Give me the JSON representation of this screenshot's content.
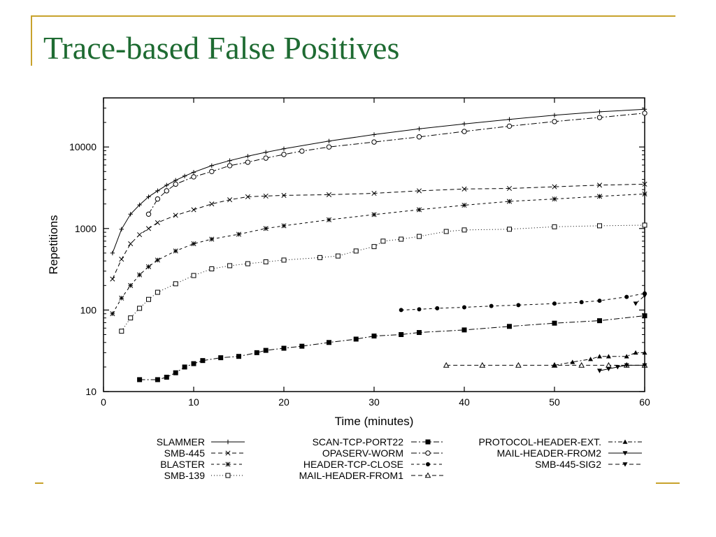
{
  "slide": {
    "title": "Trace-based False Positives",
    "accent_color": "#c8a22c",
    "title_color": "#1e6b32"
  },
  "chart_data": {
    "type": "line",
    "title": "",
    "xlabel": "Time (minutes)",
    "ylabel": "Repetitions",
    "xlim": [
      0,
      60
    ],
    "ylim": [
      10,
      40000
    ],
    "yscale": "log",
    "xticks": [
      "0",
      "10",
      "20",
      "30",
      "40",
      "50",
      "60"
    ],
    "yticks": [
      "10",
      "100",
      "1000",
      "10000"
    ],
    "legend_position": "bottom",
    "series": [
      {
        "name": "SLAMMER",
        "marker": "plus",
        "dash": "",
        "points": [
          [
            1,
            500
          ],
          [
            2,
            980
          ],
          [
            3,
            1500
          ],
          [
            4,
            1950
          ],
          [
            5,
            2450
          ],
          [
            6,
            2900
          ],
          [
            7,
            3400
          ],
          [
            8,
            3900
          ],
          [
            9,
            4400
          ],
          [
            10,
            4900
          ],
          [
            12,
            5900
          ],
          [
            14,
            6800
          ],
          [
            16,
            7700
          ],
          [
            18,
            8600
          ],
          [
            20,
            9500
          ],
          [
            25,
            11800
          ],
          [
            30,
            14200
          ],
          [
            35,
            16700
          ],
          [
            40,
            19200
          ],
          [
            45,
            21800
          ],
          [
            50,
            24500
          ],
          [
            55,
            27000
          ],
          [
            60,
            29000
          ]
        ]
      },
      {
        "name": "SMB-445",
        "marker": "x",
        "dash": "6,4",
        "points": [
          [
            1,
            240
          ],
          [
            2,
            420
          ],
          [
            3,
            650
          ],
          [
            4,
            840
          ],
          [
            5,
            1000
          ],
          [
            6,
            1180
          ],
          [
            8,
            1450
          ],
          [
            10,
            1700
          ],
          [
            12,
            2000
          ],
          [
            14,
            2250
          ],
          [
            16,
            2450
          ],
          [
            18,
            2500
          ],
          [
            20,
            2550
          ],
          [
            25,
            2600
          ],
          [
            30,
            2700
          ],
          [
            35,
            2900
          ],
          [
            40,
            3050
          ],
          [
            45,
            3100
          ],
          [
            50,
            3250
          ],
          [
            55,
            3400
          ],
          [
            60,
            3500
          ]
        ]
      },
      {
        "name": "BLASTER",
        "marker": "star",
        "dash": "4,4",
        "points": [
          [
            1,
            90
          ],
          [
            2,
            140
          ],
          [
            3,
            200
          ],
          [
            4,
            270
          ],
          [
            5,
            340
          ],
          [
            6,
            410
          ],
          [
            8,
            530
          ],
          [
            10,
            650
          ],
          [
            12,
            740
          ],
          [
            15,
            850
          ],
          [
            18,
            1000
          ],
          [
            20,
            1080
          ],
          [
            25,
            1280
          ],
          [
            30,
            1480
          ],
          [
            35,
            1700
          ],
          [
            40,
            1930
          ],
          [
            45,
            2150
          ],
          [
            50,
            2300
          ],
          [
            55,
            2480
          ],
          [
            60,
            2650
          ]
        ]
      },
      {
        "name": "SMB-139",
        "marker": "square",
        "dash": "1,3",
        "points": [
          [
            2,
            55
          ],
          [
            3,
            80
          ],
          [
            4,
            105
          ],
          [
            5,
            135
          ],
          [
            6,
            165
          ],
          [
            8,
            210
          ],
          [
            10,
            265
          ],
          [
            12,
            320
          ],
          [
            14,
            350
          ],
          [
            16,
            370
          ],
          [
            18,
            390
          ],
          [
            20,
            410
          ],
          [
            24,
            440
          ],
          [
            26,
            460
          ],
          [
            28,
            530
          ],
          [
            30,
            600
          ],
          [
            31,
            700
          ],
          [
            33,
            740
          ],
          [
            35,
            800
          ],
          [
            38,
            920
          ],
          [
            40,
            960
          ],
          [
            45,
            980
          ],
          [
            50,
            1050
          ],
          [
            55,
            1080
          ],
          [
            60,
            1100
          ]
        ]
      },
      {
        "name": "SCAN-TCP-PORT22",
        "marker": "filled-square",
        "dash": "8,3,2,3",
        "points": [
          [
            4,
            14
          ],
          [
            6,
            14
          ],
          [
            7,
            15
          ],
          [
            8,
            17
          ],
          [
            9,
            20
          ],
          [
            10,
            22
          ],
          [
            11,
            24
          ],
          [
            13,
            26
          ],
          [
            15,
            27
          ],
          [
            17,
            30
          ],
          [
            18,
            32
          ],
          [
            20,
            34
          ],
          [
            22,
            36
          ],
          [
            25,
            40
          ],
          [
            28,
            44
          ],
          [
            30,
            48
          ],
          [
            33,
            50
          ],
          [
            35,
            53
          ],
          [
            40,
            57
          ],
          [
            45,
            63
          ],
          [
            50,
            69
          ],
          [
            55,
            74
          ],
          [
            60,
            85
          ]
        ]
      },
      {
        "name": "OPASERV-WORM",
        "marker": "circle",
        "dash": "8,3,2,3",
        "points": [
          [
            5,
            1500
          ],
          [
            6,
            2300
          ],
          [
            7,
            2900
          ],
          [
            8,
            3500
          ],
          [
            10,
            4300
          ],
          [
            12,
            5000
          ],
          [
            14,
            5900
          ],
          [
            16,
            6500
          ],
          [
            18,
            7300
          ],
          [
            20,
            8100
          ],
          [
            22,
            8900
          ],
          [
            25,
            10000
          ],
          [
            30,
            11500
          ],
          [
            35,
            13300
          ],
          [
            40,
            15500
          ],
          [
            45,
            18000
          ],
          [
            50,
            20500
          ],
          [
            55,
            23000
          ],
          [
            60,
            26000
          ]
        ]
      },
      {
        "name": "HEADER-TCP-CLOSE",
        "marker": "filled-circle",
        "dash": "4,4",
        "points": [
          [
            33,
            100
          ],
          [
            35,
            102
          ],
          [
            37,
            105
          ],
          [
            40,
            108
          ],
          [
            43,
            112
          ],
          [
            46,
            115
          ],
          [
            50,
            120
          ],
          [
            53,
            125
          ],
          [
            55,
            130
          ],
          [
            58,
            145
          ],
          [
            60,
            160
          ]
        ]
      },
      {
        "name": "MAIL-HEADER-FROM1",
        "marker": "triangle",
        "dash": "6,4",
        "points": [
          [
            38,
            21
          ],
          [
            42,
            21
          ],
          [
            46,
            21
          ],
          [
            50,
            21
          ],
          [
            53,
            21
          ],
          [
            56,
            21
          ],
          [
            58,
            21
          ],
          [
            60,
            21
          ]
        ]
      },
      {
        "name": "PROTOCOL-HEADER-EXT.",
        "marker": "filled-triangle",
        "dash": "6,3,2,3",
        "points": [
          [
            50,
            21
          ],
          [
            52,
            23
          ],
          [
            54,
            25
          ],
          [
            55,
            27
          ],
          [
            56,
            27
          ],
          [
            58,
            27
          ],
          [
            59,
            30
          ],
          [
            60,
            30
          ]
        ]
      },
      {
        "name": "MAIL-HEADER-FROM2",
        "marker": "filled-triangle-down",
        "dash": "",
        "points": [
          [
            55,
            18
          ],
          [
            56,
            19
          ],
          [
            57,
            20
          ],
          [
            58,
            21
          ],
          [
            60,
            21
          ]
        ]
      },
      {
        "name": "SMB-445-SIG2",
        "marker": "filled-triangle-down",
        "dash": "6,4",
        "points": [
          [
            59,
            120
          ],
          [
            60,
            150
          ]
        ]
      }
    ]
  }
}
